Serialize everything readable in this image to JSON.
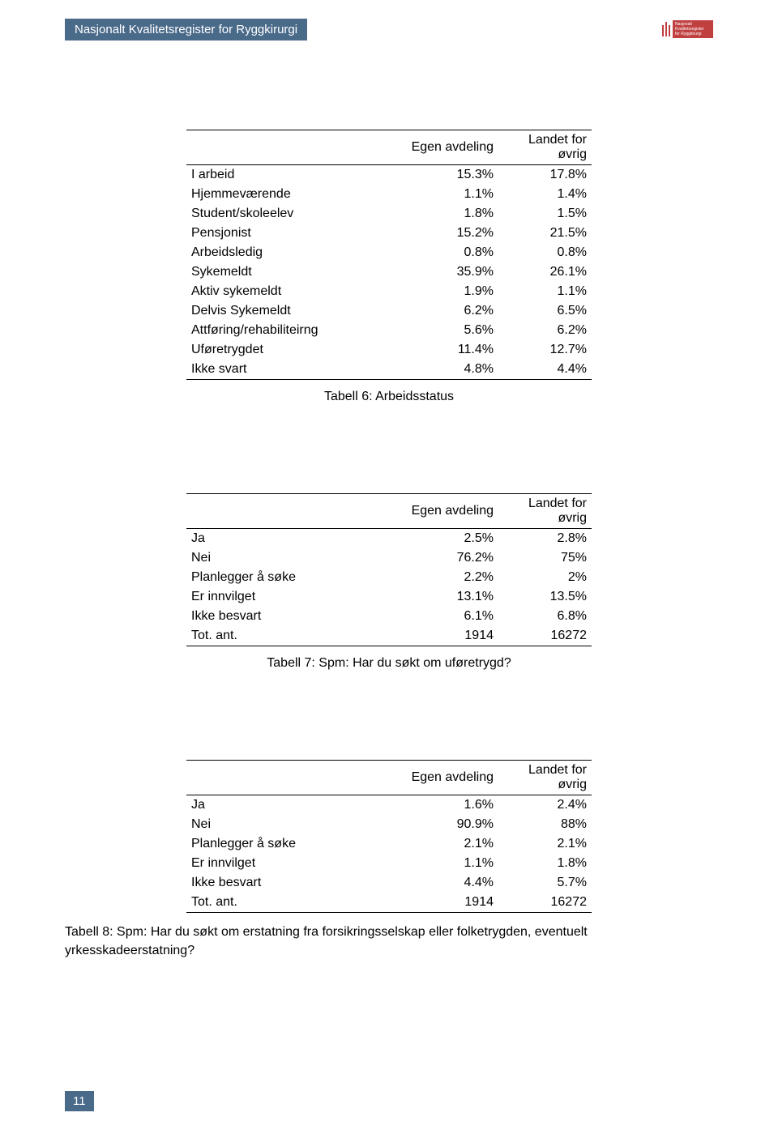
{
  "header": {
    "title": "Nasjonalt Kvalitetsregister for Ryggkirurgi",
    "logo_line1": "Nasjonalt",
    "logo_line2": "Kvalitetsregister",
    "logo_line3": "for Ryggkirurgi"
  },
  "table6": {
    "col1": "Egen avdeling",
    "col2": "Landet for øvrig",
    "rows": [
      {
        "label": "I arbeid",
        "v1": "15.3%",
        "v2": "17.8%"
      },
      {
        "label": "Hjemmeværende",
        "v1": "1.1%",
        "v2": "1.4%"
      },
      {
        "label": "Student/skoleelev",
        "v1": "1.8%",
        "v2": "1.5%"
      },
      {
        "label": "Pensjonist",
        "v1": "15.2%",
        "v2": "21.5%"
      },
      {
        "label": "Arbeidsledig",
        "v1": "0.8%",
        "v2": "0.8%"
      },
      {
        "label": "Sykemeldt",
        "v1": "35.9%",
        "v2": "26.1%"
      },
      {
        "label": "Aktiv sykemeldt",
        "v1": "1.9%",
        "v2": "1.1%"
      },
      {
        "label": "Delvis Sykemeldt",
        "v1": "6.2%",
        "v2": "6.5%"
      },
      {
        "label": "Attføring/rehabiliteirng",
        "v1": "5.6%",
        "v2": "6.2%"
      },
      {
        "label": "Uføretrygdet",
        "v1": "11.4%",
        "v2": "12.7%"
      },
      {
        "label": "Ikke svart",
        "v1": "4.8%",
        "v2": "4.4%"
      }
    ],
    "caption": "Tabell 6: Arbeidsstatus"
  },
  "table7": {
    "col1": "Egen avdeling",
    "col2": "Landet for øvrig",
    "rows": [
      {
        "label": "Ja",
        "v1": "2.5%",
        "v2": "2.8%"
      },
      {
        "label": "Nei",
        "v1": "76.2%",
        "v2": "75%"
      },
      {
        "label": "Planlegger å søke",
        "v1": "2.2%",
        "v2": "2%"
      },
      {
        "label": "Er innvilget",
        "v1": "13.1%",
        "v2": "13.5%"
      },
      {
        "label": "Ikke besvart",
        "v1": "6.1%",
        "v2": "6.8%"
      },
      {
        "label": "Tot. ant.",
        "v1": "1914",
        "v2": "16272"
      }
    ],
    "caption": "Tabell 7: Spm: Har du søkt om uføretrygd?"
  },
  "table8": {
    "col1": "Egen avdeling",
    "col2": "Landet for øvrig",
    "rows": [
      {
        "label": "Ja",
        "v1": "1.6%",
        "v2": "2.4%"
      },
      {
        "label": "Nei",
        "v1": "90.9%",
        "v2": "88%"
      },
      {
        "label": "Planlegger å søke",
        "v1": "2.1%",
        "v2": "2.1%"
      },
      {
        "label": "Er innvilget",
        "v1": "1.1%",
        "v2": "1.8%"
      },
      {
        "label": "Ikke besvart",
        "v1": "4.4%",
        "v2": "5.7%"
      },
      {
        "label": "Tot. ant.",
        "v1": "1914",
        "v2": "16272"
      }
    ],
    "caption": "Tabell 8: Spm: Har du søkt om erstatning fra forsikringsselskap eller folketrygden, eventuelt yrkesskadeerstatning?"
  },
  "page_number": "11"
}
